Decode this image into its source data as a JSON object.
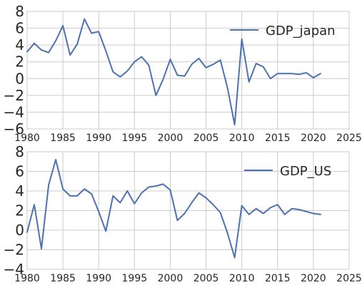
{
  "colors": {
    "series": "#4c72b0",
    "grid": "#cbcbcb",
    "text": "#262626"
  },
  "chart_data": [
    {
      "type": "line",
      "xlim": [
        1980,
        2025
      ],
      "ylim": [
        -6,
        8
      ],
      "xticks": [
        1980,
        1985,
        1990,
        1995,
        2000,
        2005,
        2010,
        2015,
        2020,
        2025
      ],
      "xtick_labels": [
        "1980",
        "1985",
        "1990",
        "1995",
        "2000",
        "2005",
        "2010",
        "2015",
        "2020",
        "2025"
      ],
      "yticks": [
        -6,
        -4,
        -2,
        0,
        2,
        4,
        6,
        8
      ],
      "ytick_labels": [
        "−6",
        "−4",
        "−2",
        "0",
        "2",
        "4",
        "6",
        "8"
      ],
      "grid": true,
      "legend_position": "top-right",
      "series": [
        {
          "name": "GDP_japan",
          "x": [
            1980,
            1981,
            1982,
            1983,
            1984,
            1985,
            1986,
            1987,
            1988,
            1989,
            1990,
            1991,
            1992,
            1993,
            1994,
            1995,
            1996,
            1997,
            1998,
            1999,
            2000,
            2001,
            2002,
            2003,
            2004,
            2005,
            2006,
            2007,
            2008,
            2009,
            2010,
            2011,
            2012,
            2013,
            2014,
            2015,
            2016,
            2017,
            2018,
            2019,
            2020,
            2021
          ],
          "y": [
            3.2,
            4.2,
            3.4,
            3.1,
            4.5,
            6.3,
            2.8,
            4.1,
            7.1,
            5.4,
            5.6,
            3.3,
            0.8,
            0.2,
            0.9,
            2.0,
            2.6,
            1.6,
            -2.0,
            -0.1,
            2.3,
            0.4,
            0.3,
            1.7,
            2.4,
            1.3,
            1.7,
            2.2,
            -1.1,
            -5.5,
            4.7,
            -0.4,
            1.8,
            1.4,
            0.0,
            0.6,
            0.6,
            0.6,
            0.5,
            0.7,
            0.1,
            0.6
          ]
        }
      ]
    },
    {
      "type": "line",
      "xlim": [
        1980,
        2025
      ],
      "ylim": [
        -4,
        8
      ],
      "xticks": [
        1980,
        1985,
        1990,
        1995,
        2000,
        2005,
        2010,
        2015,
        2020,
        2025
      ],
      "xtick_labels": [
        "1980",
        "1985",
        "1990",
        "1995",
        "2000",
        "2005",
        "2010",
        "2015",
        "2020",
        "2025"
      ],
      "yticks": [
        -4,
        -2,
        0,
        2,
        4,
        6,
        8
      ],
      "ytick_labels": [
        "−4",
        "−2",
        "0",
        "2",
        "4",
        "6",
        "8"
      ],
      "grid": true,
      "legend_position": "top-right",
      "series": [
        {
          "name": "GDP_US",
          "x": [
            1980,
            1981,
            1982,
            1983,
            1984,
            1985,
            1986,
            1987,
            1988,
            1989,
            1990,
            1991,
            1992,
            1993,
            1994,
            1995,
            1996,
            1997,
            1998,
            1999,
            2000,
            2001,
            2002,
            2003,
            2004,
            2005,
            2006,
            2007,
            2008,
            2009,
            2010,
            2011,
            2012,
            2013,
            2014,
            2015,
            2016,
            2017,
            2018,
            2019,
            2020,
            2021
          ],
          "y": [
            -0.2,
            2.6,
            -1.9,
            4.6,
            7.2,
            4.2,
            3.5,
            3.5,
            4.2,
            3.7,
            1.9,
            -0.1,
            3.5,
            2.8,
            4.0,
            2.7,
            3.8,
            4.4,
            4.5,
            4.7,
            4.1,
            1.0,
            1.7,
            2.8,
            3.8,
            3.3,
            2.6,
            1.8,
            -0.3,
            -2.8,
            2.5,
            1.6,
            2.2,
            1.7,
            2.3,
            2.6,
            1.6,
            2.2,
            2.1,
            1.9,
            1.7,
            1.6
          ]
        }
      ]
    }
  ]
}
